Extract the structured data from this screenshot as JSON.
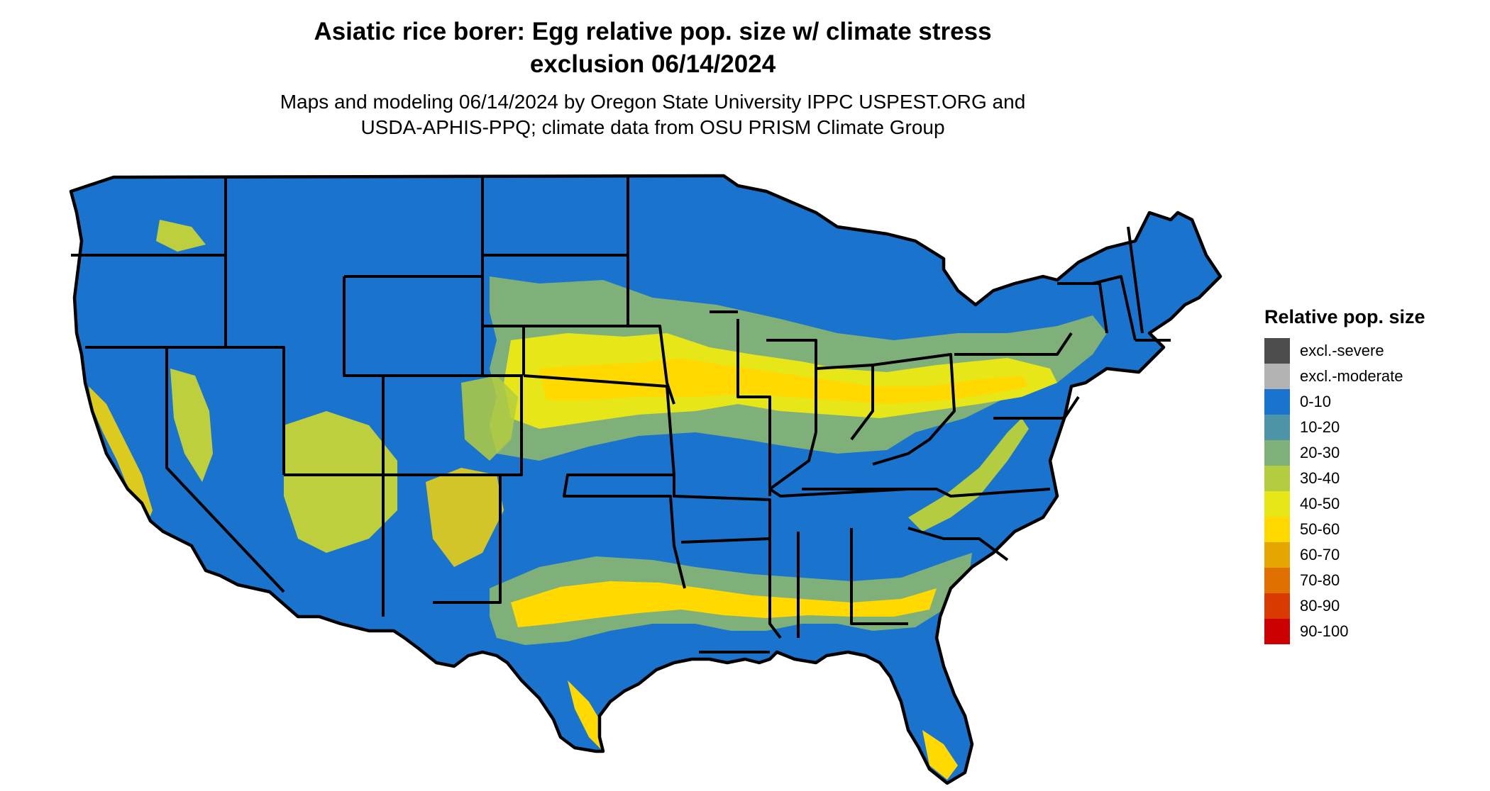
{
  "map": {
    "title_line1": "Asiatic rice borer: Egg relative pop. size w/ climate stress",
    "title_line2": "exclusion 06/14/2024",
    "subtitle_line1": "Maps and modeling 06/14/2024 by Oregon State University IPPC USPEST.ORG and",
    "subtitle_line2": "USDA-APHIS-PPQ; climate data from OSU PRISM Climate Group",
    "region": "Conterminous United States",
    "base_color": "#1a73cc"
  },
  "legend": {
    "title": "Relative pop. size",
    "items": [
      {
        "label": "excl.-severe",
        "color": "#4d4d4d"
      },
      {
        "label": "excl.-moderate",
        "color": "#b3b3b3"
      },
      {
        "label": "0-10",
        "color": "#1a73cc"
      },
      {
        "label": "10-20",
        "color": "#4d94a6"
      },
      {
        "label": "20-30",
        "color": "#80b07a"
      },
      {
        "label": "30-40",
        "color": "#b3cc40"
      },
      {
        "label": "40-50",
        "color": "#e6e619"
      },
      {
        "label": "50-60",
        "color": "#ffd900"
      },
      {
        "label": "60-70",
        "color": "#e6a600"
      },
      {
        "label": "70-80",
        "color": "#e07000"
      },
      {
        "label": "80-90",
        "color": "#d93a00"
      },
      {
        "label": "90-100",
        "color": "#cc0000"
      }
    ]
  }
}
